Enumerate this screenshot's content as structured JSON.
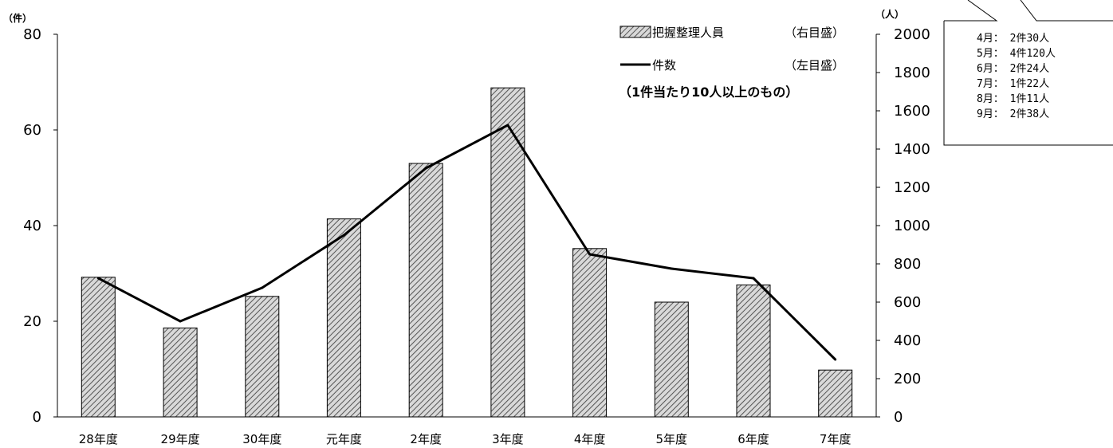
{
  "chart_data": {
    "type": "bar+line",
    "categories": [
      "28年度",
      "29年度",
      "30年度",
      "元年度",
      "2年度",
      "3年度",
      "4年度",
      "5年度",
      "6年度",
      "7年度"
    ],
    "series": [
      {
        "name": "把握整理人員",
        "axis": "right",
        "kind": "bar",
        "pattern": "hatched",
        "values": [
          730,
          465,
          630,
          1035,
          1325,
          1720,
          880,
          600,
          690,
          245
        ]
      },
      {
        "name": "件数",
        "axis": "left",
        "kind": "line",
        "values": [
          29,
          20,
          27,
          38,
          52,
          61,
          34,
          31,
          29,
          12
        ]
      }
    ],
    "left_axis": {
      "unit": "（件）",
      "ylim": [
        0,
        80
      ],
      "ticks": [
        0,
        20,
        40,
        60,
        80
      ]
    },
    "right_axis": {
      "unit": "（人）",
      "ylim": [
        0,
        2000
      ],
      "ticks": [
        0,
        200,
        400,
        600,
        800,
        1000,
        1200,
        1400,
        1600,
        1800,
        2000
      ]
    },
    "legend": [
      {
        "label": "把握整理人員",
        "axis_note": "（右目盛）"
      },
      {
        "label": "件数",
        "axis_note": "（左目盛）"
      }
    ],
    "note": "（1件当たり10人以上のもの）",
    "grid": false,
    "legend_position": "top-right"
  },
  "callout": {
    "lines": [
      "4月：  2件30人",
      "5月：  4件120人",
      "6月：  2件24人",
      "7月：  1件22人",
      "8月：  1件11人",
      "9月：  2件38人"
    ]
  },
  "colors": {
    "bar_fill": "#d9d9d9",
    "bar_hatch": "#555555",
    "line": "#000000",
    "axis": "#000000"
  }
}
